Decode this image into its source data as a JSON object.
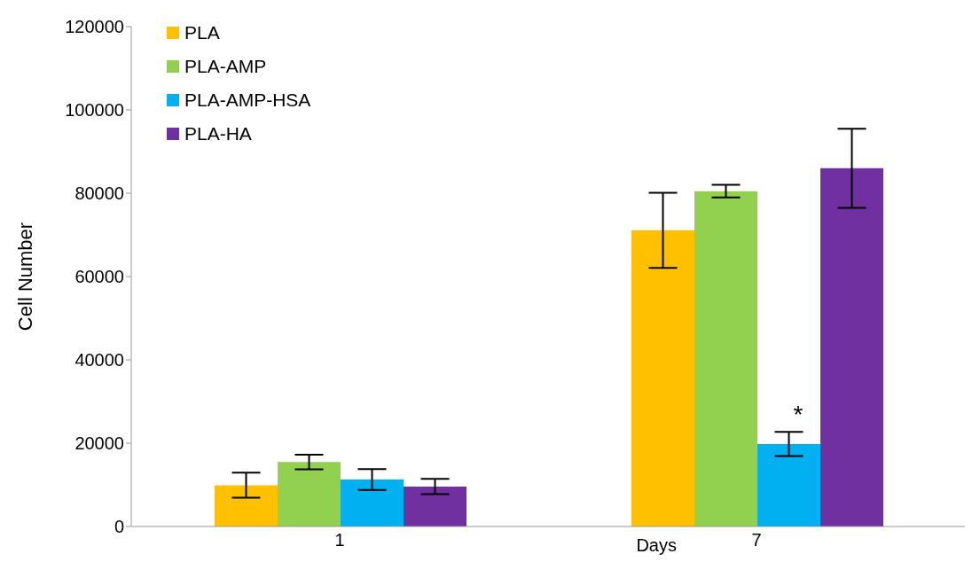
{
  "chart_data": {
    "type": "bar",
    "xlabel": "Days",
    "ylabel": "Cell Number",
    "categories": [
      "1",
      "7"
    ],
    "series": [
      {
        "name": "PLA",
        "color": "#ffc000",
        "values": [
          9900,
          71100
        ],
        "errors": [
          3000,
          9000
        ]
      },
      {
        "name": "PLA-AMP",
        "color": "#92d050",
        "values": [
          15500,
          80500
        ],
        "errors": [
          1750,
          1500
        ]
      },
      {
        "name": "PLA-AMP-HSA",
        "color": "#00b0f0",
        "values": [
          11300,
          19800
        ],
        "errors": [
          2500,
          2900
        ]
      },
      {
        "name": "PLA-HA",
        "color": "#7030a0",
        "values": [
          9600,
          86000
        ],
        "errors": [
          1850,
          9500
        ]
      }
    ],
    "ylim": [
      0,
      120000
    ],
    "yticks": [
      0,
      20000,
      40000,
      60000,
      80000,
      100000,
      120000
    ],
    "annotations": [
      {
        "text": "*",
        "x": "7",
        "y": 25000
      }
    ],
    "legend": "top left"
  }
}
